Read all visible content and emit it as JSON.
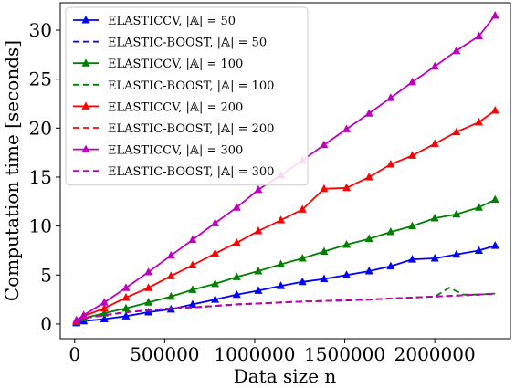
{
  "chart_data": {
    "type": "line",
    "title": "",
    "xlabel": "Data size n",
    "ylabel": "Computation time [seconds]",
    "xlim": [
      -80000,
      2420000
    ],
    "ylim": [
      -1.5,
      32.8
    ],
    "xticks": [
      0,
      500000,
      1000000,
      1500000,
      2000000
    ],
    "xtick_labels": [
      "0",
      "500000",
      "1000000",
      "1500000",
      "2000000"
    ],
    "yticks": [
      0,
      5,
      10,
      15,
      20,
      25,
      30
    ],
    "ytick_labels": [
      "0",
      "5",
      "10",
      "15",
      "20",
      "25",
      "30"
    ],
    "legend_position": "top-left",
    "grid": false,
    "series": [
      {
        "name": "ELASTICCV, |𝔸| = 50",
        "color": "#0000ff",
        "dash": "solid",
        "marker": "triangle",
        "x": [
          10000,
          50000,
          165000,
          285000,
          410000,
          535000,
          655000,
          780000,
          900000,
          1020000,
          1145000,
          1265000,
          1385000,
          1510000,
          1635000,
          1755000,
          1875000,
          2000000,
          2120000,
          2245000,
          2335000
        ],
        "y": [
          0.1,
          0.3,
          0.5,
          0.8,
          1.2,
          1.5,
          2.0,
          2.5,
          3.0,
          3.4,
          3.9,
          4.3,
          4.6,
          5.0,
          5.4,
          5.9,
          6.6,
          6.7,
          7.1,
          7.5,
          8.0
        ]
      },
      {
        "name": "ELASTIC-BOOST, |𝔸| = 50",
        "color": "#0000ff",
        "dash": "dashed",
        "marker": "none",
        "x": [
          10000,
          50000,
          165000,
          285000,
          410000,
          535000,
          655000,
          780000,
          900000,
          1020000,
          1145000,
          1265000,
          1385000,
          1510000,
          1635000,
          1755000,
          1875000,
          2000000,
          2120000,
          2245000,
          2335000
        ],
        "y": [
          0.2,
          0.6,
          0.9,
          1.2,
          1.4,
          1.6,
          1.7,
          1.85,
          2.0,
          2.1,
          2.2,
          2.3,
          2.35,
          2.4,
          2.5,
          2.6,
          2.7,
          2.8,
          2.9,
          3.0,
          3.1
        ]
      },
      {
        "name": "ELASTICCV, |𝔸| = 100",
        "color": "#008000",
        "dash": "solid",
        "marker": "triangle",
        "x": [
          10000,
          50000,
          165000,
          285000,
          410000,
          535000,
          655000,
          780000,
          900000,
          1020000,
          1145000,
          1265000,
          1385000,
          1510000,
          1635000,
          1755000,
          1875000,
          2000000,
          2120000,
          2245000,
          2335000
        ],
        "y": [
          0.2,
          0.6,
          1.1,
          1.6,
          2.2,
          2.8,
          3.5,
          4.1,
          4.8,
          5.4,
          6.1,
          6.7,
          7.4,
          8.1,
          8.7,
          9.4,
          10.0,
          10.8,
          11.2,
          11.9,
          12.7
        ]
      },
      {
        "name": "ELASTIC-BOOST, |𝔸| = 100",
        "color": "#008000",
        "dash": "dashed",
        "marker": "none",
        "x": [
          10000,
          50000,
          165000,
          285000,
          410000,
          535000,
          655000,
          780000,
          900000,
          1020000,
          1145000,
          1265000,
          1385000,
          1510000,
          1635000,
          1755000,
          1875000,
          2000000,
          2120000,
          2245000,
          2335000
        ],
        "y": [
          0.2,
          0.6,
          0.9,
          1.2,
          1.4,
          1.55,
          1.7,
          1.85,
          2.0,
          2.1,
          2.2,
          2.3,
          2.35,
          2.45,
          2.5,
          2.6,
          2.7,
          2.8,
          2.95,
          3.0,
          3.1
        ]
      },
      {
        "name": "ELASTICCV, |𝔸| = 200",
        "color": "#ff0000",
        "dash": "solid",
        "marker": "triangle",
        "x": [
          10000,
          50000,
          165000,
          285000,
          410000,
          535000,
          655000,
          780000,
          900000,
          1020000,
          1145000,
          1265000,
          1385000,
          1510000,
          1635000,
          1755000,
          1875000,
          2000000,
          2120000,
          2245000,
          2335000
        ],
        "y": [
          0.3,
          0.8,
          1.6,
          2.7,
          3.7,
          4.9,
          6.0,
          7.2,
          8.3,
          9.5,
          10.6,
          11.7,
          13.8,
          13.9,
          15.0,
          16.3,
          17.2,
          18.4,
          19.6,
          20.6,
          21.8
        ]
      },
      {
        "name": "ELASTIC-BOOST, |𝔸| = 200",
        "color": "#ff0000",
        "dash": "dashed",
        "marker": "none",
        "x": [
          10000,
          50000,
          165000,
          285000,
          410000,
          535000,
          655000,
          780000,
          900000,
          1020000,
          1145000,
          1265000,
          1385000,
          1510000,
          1635000,
          1755000,
          1875000,
          2000000,
          2120000,
          2245000,
          2335000
        ],
        "y": [
          0.2,
          0.6,
          0.9,
          1.2,
          1.4,
          1.6,
          1.7,
          1.85,
          2.0,
          2.1,
          2.2,
          2.3,
          2.35,
          2.45,
          2.5,
          2.6,
          2.7,
          2.8,
          2.9,
          3.0,
          3.1
        ]
      },
      {
        "name": "ELASTICCV, |𝔸| = 300",
        "color": "#bf00bf",
        "dash": "solid",
        "marker": "triangle",
        "x": [
          10000,
          50000,
          165000,
          285000,
          410000,
          535000,
          655000,
          780000,
          900000,
          1020000,
          1145000,
          1265000,
          1385000,
          1510000,
          1635000,
          1755000,
          1875000,
          2000000,
          2120000,
          2245000,
          2335000
        ],
        "y": [
          0.4,
          0.9,
          2.2,
          3.7,
          5.3,
          7.0,
          8.6,
          10.3,
          11.9,
          13.7,
          15.2,
          16.7,
          18.3,
          19.9,
          21.5,
          23.1,
          24.7,
          26.3,
          27.9,
          29.4,
          31.5
        ]
      },
      {
        "name": "ELASTIC-BOOST, |𝔸| = 300",
        "color": "#bf00bf",
        "dash": "dashed",
        "marker": "none",
        "x": [
          10000,
          50000,
          165000,
          285000,
          410000,
          535000,
          655000,
          780000,
          900000,
          1020000,
          1145000,
          1265000,
          1385000,
          1510000,
          1635000,
          1755000,
          1875000,
          2000000,
          2120000,
          2245000,
          2335000
        ],
        "y": [
          0.2,
          0.6,
          0.9,
          1.2,
          1.4,
          1.6,
          1.7,
          1.85,
          2.0,
          2.1,
          2.2,
          2.3,
          2.35,
          2.45,
          2.5,
          2.6,
          2.7,
          2.8,
          2.9,
          3.0,
          3.1
        ]
      }
    ],
    "annotations": [
      {
        "series_index": 3,
        "note": "spike",
        "x": [
          2000000,
          2080000,
          2160000
        ],
        "y": [
          2.8,
          3.7,
          3.0
        ]
      }
    ]
  }
}
